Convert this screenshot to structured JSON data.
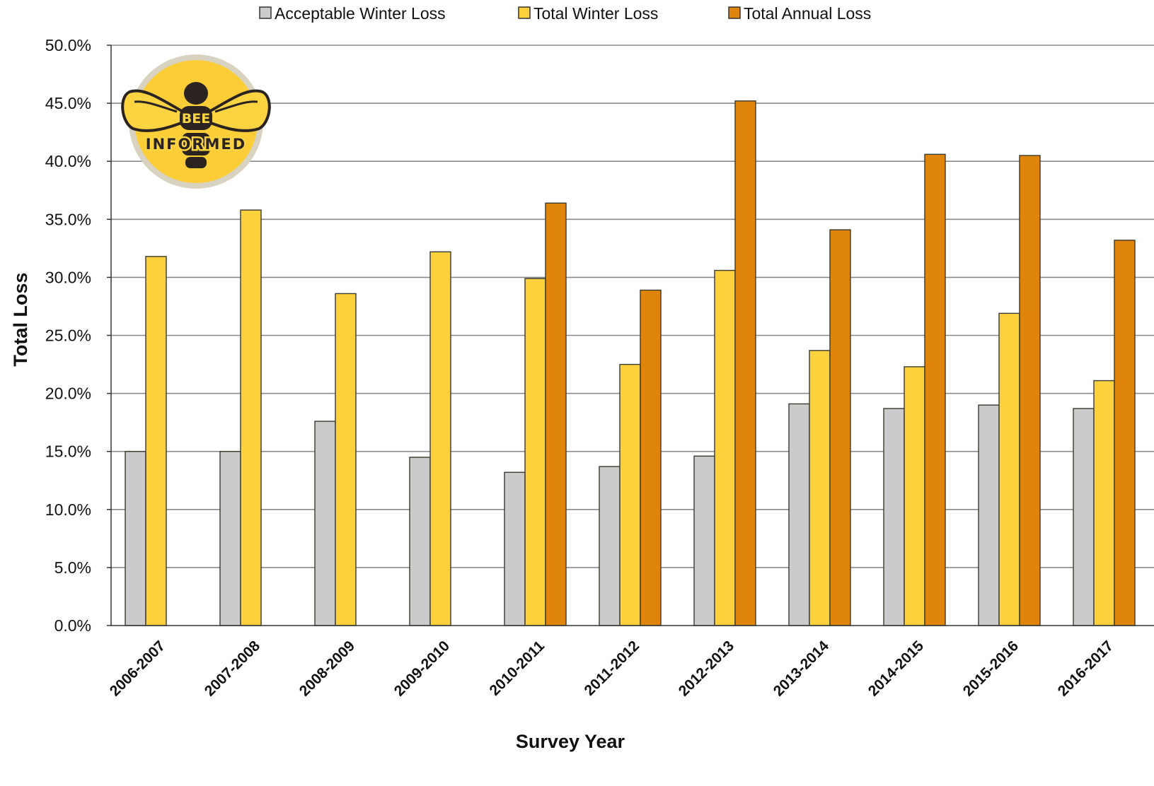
{
  "chart_data": {
    "type": "bar",
    "title": "",
    "xlabel": "Survey Year",
    "ylabel": "Total Loss",
    "ylim": [
      0,
      50
    ],
    "y_tick_step": 5,
    "y_tick_format": "percent-1dp",
    "grid": true,
    "legend_position": "top",
    "categories": [
      "2006-2007",
      "2007-2008",
      "2008-2009",
      "2009-2010",
      "2010-2011",
      "2011-2012",
      "2012-2013",
      "2013-2014",
      "2014-2015",
      "2015-2016",
      "2016-2017"
    ],
    "series": [
      {
        "name": "Acceptable Winter Loss",
        "color": "#cbcbcb",
        "values": [
          15.0,
          15.0,
          17.6,
          14.5,
          13.2,
          13.7,
          14.6,
          19.1,
          18.7,
          19.0,
          18.7
        ]
      },
      {
        "name": "Total Winter Loss",
        "color": "#fdd13b",
        "values": [
          31.8,
          35.8,
          28.6,
          32.2,
          29.9,
          22.5,
          30.6,
          23.7,
          22.3,
          26.9,
          21.1
        ]
      },
      {
        "name": "Total Annual Loss",
        "color": "#df850b",
        "values": [
          null,
          null,
          null,
          null,
          36.4,
          28.9,
          45.2,
          34.1,
          40.6,
          40.5,
          33.2
        ]
      }
    ]
  },
  "logo": {
    "line1": "BEE",
    "line2": "INFORMED",
    "colors": {
      "disc": "#fccd37",
      "ring": "#d8d2c0",
      "wing": "#fcd341",
      "body": "#2a2320"
    }
  }
}
